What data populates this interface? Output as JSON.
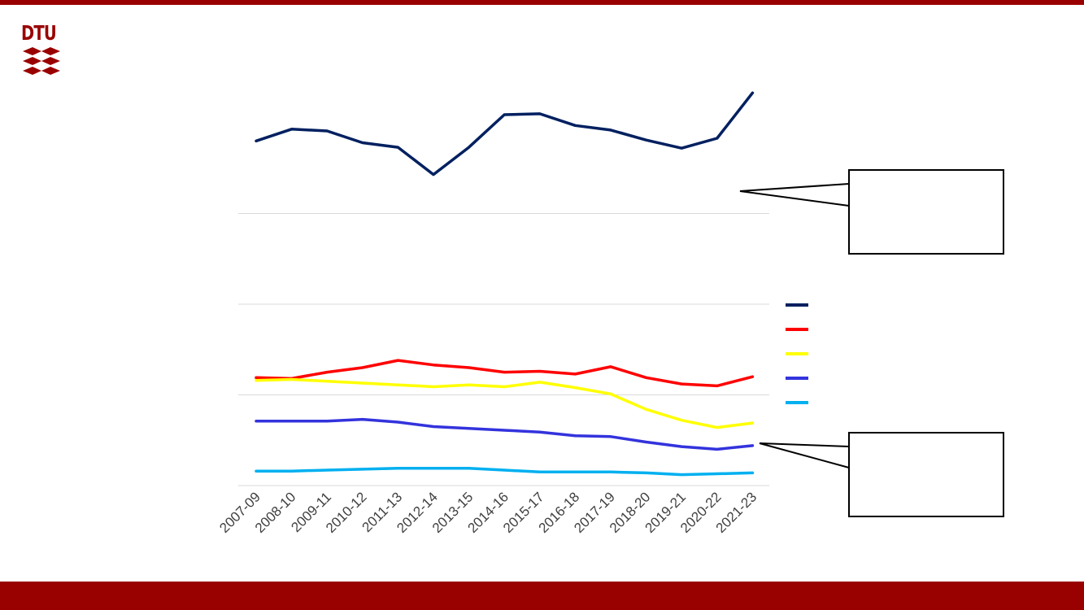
{
  "brand": {
    "logo_text": "DTU",
    "bar_color": "#990000"
  },
  "chart_data": {
    "type": "line",
    "categories": [
      "2007-09",
      "2008-10",
      "2009-11",
      "2010-12",
      "2011-13",
      "2012-14",
      "2013-15",
      "2014-16",
      "2015-17",
      "2016-18",
      "2017-19",
      "2018-20",
      "2019-21",
      "2020-22",
      "2021-23"
    ],
    "ylim": [
      0,
      400
    ],
    "gridlines": [
      0,
      100,
      200,
      300,
      400
    ],
    "grid": true,
    "series": [
      {
        "color": "#002060",
        "values": [
          380,
          393,
          391,
          378,
          373,
          343,
          373,
          409,
          410,
          397,
          392,
          381,
          372,
          383,
          433
        ]
      },
      {
        "color": "#ff0000",
        "values": [
          119,
          118,
          125,
          130,
          138,
          133,
          130,
          125,
          126,
          123,
          131,
          119,
          112,
          110,
          120
        ]
      },
      {
        "color": "#ffff00",
        "values": [
          116,
          117,
          115,
          113,
          111,
          109,
          111,
          109,
          114,
          108,
          101,
          84,
          72,
          64,
          69
        ]
      },
      {
        "color": "#3333dd",
        "values": [
          71,
          71,
          71,
          73,
          70,
          65,
          63,
          61,
          59,
          55,
          54,
          48,
          43,
          40,
          44
        ]
      },
      {
        "color": "#00b0f0",
        "values": [
          16,
          16,
          17,
          18,
          19,
          19,
          19,
          17,
          15,
          15,
          15,
          14,
          12,
          13,
          14
        ]
      }
    ],
    "legend_placement": "right"
  }
}
